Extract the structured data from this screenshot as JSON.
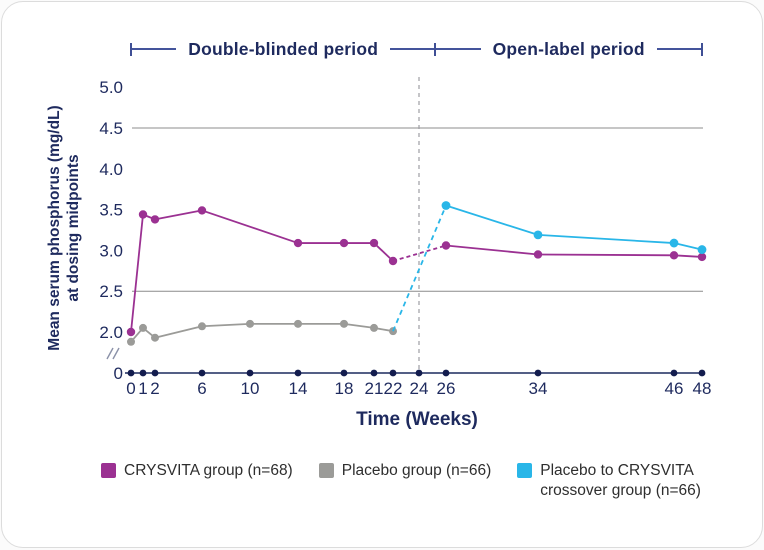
{
  "header": {
    "left_label": "Double-blinded period",
    "right_label": "Open-label period"
  },
  "chart_data": {
    "type": "line",
    "xlabel": "Time (Weeks)",
    "ylabel_line1": "Mean serum phosphorus (mg/dL)",
    "ylabel_line2": "at dosing midpoints",
    "x_ticks": [
      0,
      1,
      2,
      6,
      10,
      14,
      18,
      21,
      22,
      24,
      26,
      34,
      46,
      48
    ],
    "y_ticks": [
      "5.0",
      "4.5",
      "4.0",
      "3.5",
      "3.0",
      "2.5",
      "2.0"
    ],
    "y_origin_label": "0",
    "y_axis_break": true,
    "ylim": [
      0,
      5.0
    ],
    "reference_lines": [
      4.5,
      2.5
    ],
    "divider_week": 24,
    "series": [
      {
        "name": "CRYSVITA group (n=68)",
        "color": "#9B3192",
        "points": [
          [
            0,
            2.0
          ],
          [
            1,
            3.44
          ],
          [
            2,
            3.38
          ],
          [
            6,
            3.49
          ],
          [
            14,
            3.09
          ],
          [
            18,
            3.09
          ],
          [
            21,
            3.09
          ],
          [
            22,
            2.87
          ],
          [
            26,
            3.06
          ],
          [
            34,
            2.95
          ],
          [
            46,
            2.94
          ],
          [
            48,
            2.92
          ]
        ],
        "dashed_spans": [
          [
            22,
            26
          ]
        ]
      },
      {
        "name": "Placebo group (n=66)",
        "color": "#9B9B98",
        "points": [
          [
            0,
            1.88
          ],
          [
            1,
            2.05
          ],
          [
            2,
            1.93
          ],
          [
            6,
            2.07
          ],
          [
            10,
            2.1
          ],
          [
            14,
            2.1
          ],
          [
            18,
            2.1
          ],
          [
            21,
            2.05
          ],
          [
            22,
            2.01
          ]
        ],
        "dashed_spans": []
      },
      {
        "name": "Placebo to CRYSVITA crossover group (n=66)",
        "color": "#29B6E8",
        "points": [
          [
            26,
            3.55
          ],
          [
            34,
            3.19
          ],
          [
            46,
            3.09
          ],
          [
            48,
            3.01
          ]
        ],
        "dashed_spans": [],
        "dashed_lead_from": [
          22,
          2.01
        ]
      }
    ]
  },
  "legend": {
    "items": [
      {
        "label": "CRYSVITA group (n=68)",
        "color": "#9B3192"
      },
      {
        "label": "Placebo group (n=66)",
        "color": "#9B9B98"
      },
      {
        "label": "Placebo to CRYSVITA\ncrossover group (n=66)",
        "color": "#29B6E8"
      }
    ]
  },
  "colors": {
    "axis": "#1B2A5E",
    "axis_dot": "#131C4E",
    "tick_label": "#1E2A5E",
    "grid": "#8C8C8C",
    "divider": "#9E9EA4",
    "break_mark": "#8A91A8"
  }
}
